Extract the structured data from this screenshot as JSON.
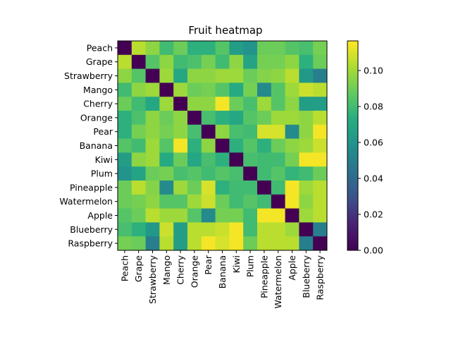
{
  "chart_data": {
    "type": "heatmap",
    "title": "Fruit heatmap",
    "categories": [
      "Peach",
      "Grape",
      "Strawberry",
      "Mango",
      "Cherry",
      "Orange",
      "Pear",
      "Banana",
      "Kiwi",
      "Plum",
      "Pineapple",
      "Watermelon",
      "Apple",
      "Blueberry",
      "Raspberry"
    ],
    "values": [
      [
        0.0,
        0.105,
        0.097,
        0.08,
        0.09,
        0.075,
        0.075,
        0.085,
        0.065,
        0.06,
        0.09,
        0.09,
        0.085,
        0.082,
        0.092
      ],
      [
        0.105,
        0.0,
        0.085,
        0.097,
        0.08,
        0.083,
        0.092,
        0.08,
        0.097,
        0.068,
        0.092,
        0.092,
        0.097,
        0.075,
        0.09
      ],
      [
        0.097,
        0.085,
        0.0,
        0.1,
        0.07,
        0.097,
        0.097,
        0.1,
        0.1,
        0.09,
        0.095,
        0.097,
        0.105,
        0.062,
        0.05
      ],
      [
        0.08,
        0.097,
        0.1,
        0.0,
        0.1,
        0.09,
        0.092,
        0.085,
        0.072,
        0.092,
        0.055,
        0.085,
        0.1,
        0.108,
        0.105
      ],
      [
        0.09,
        0.08,
        0.07,
        0.1,
        0.0,
        0.097,
        0.097,
        0.115,
        0.09,
        0.082,
        0.1,
        0.085,
        0.097,
        0.065,
        0.065
      ],
      [
        0.075,
        0.083,
        0.097,
        0.09,
        0.097,
        0.0,
        0.082,
        0.075,
        0.07,
        0.085,
        0.09,
        0.1,
        0.1,
        0.097,
        0.105
      ],
      [
        0.075,
        0.092,
        0.097,
        0.092,
        0.097,
        0.082,
        0.0,
        0.097,
        0.082,
        0.08,
        0.11,
        0.11,
        0.055,
        0.097,
        0.115
      ],
      [
        0.085,
        0.08,
        0.1,
        0.085,
        0.115,
        0.075,
        0.097,
        0.0,
        0.075,
        0.085,
        0.075,
        0.09,
        0.097,
        0.1,
        0.108
      ],
      [
        0.065,
        0.097,
        0.1,
        0.072,
        0.09,
        0.07,
        0.082,
        0.075,
        0.0,
        0.082,
        0.08,
        0.08,
        0.092,
        0.115,
        0.115
      ],
      [
        0.06,
        0.068,
        0.09,
        0.092,
        0.082,
        0.085,
        0.08,
        0.085,
        0.082,
        0.0,
        0.08,
        0.085,
        0.077,
        0.08,
        0.09
      ],
      [
        0.09,
        0.105,
        0.095,
        0.055,
        0.1,
        0.09,
        0.11,
        0.075,
        0.08,
        0.08,
        0.0,
        0.08,
        0.115,
        0.1,
        0.105
      ],
      [
        0.09,
        0.092,
        0.097,
        0.085,
        0.085,
        0.1,
        0.108,
        0.09,
        0.08,
        0.085,
        0.08,
        0.0,
        0.115,
        0.097,
        0.105
      ],
      [
        0.085,
        0.09,
        0.105,
        0.1,
        0.1,
        0.085,
        0.055,
        0.092,
        0.092,
        0.08,
        0.115,
        0.115,
        0.0,
        0.1,
        0.105
      ],
      [
        0.082,
        0.075,
        0.062,
        0.108,
        0.065,
        0.105,
        0.105,
        0.108,
        0.115,
        0.08,
        0.105,
        0.105,
        0.1,
        0.0,
        0.05
      ],
      [
        0.092,
        0.09,
        0.05,
        0.105,
        0.065,
        0.105,
        0.115,
        0.11,
        0.115,
        0.09,
        0.105,
        0.105,
        0.105,
        0.05,
        0.0
      ]
    ],
    "colormap": "viridis",
    "colorbar": {
      "range": [
        0.0,
        0.1165
      ],
      "ticks": [
        "0.00",
        "0.02",
        "0.04",
        "0.06",
        "0.08",
        "0.10"
      ]
    }
  }
}
